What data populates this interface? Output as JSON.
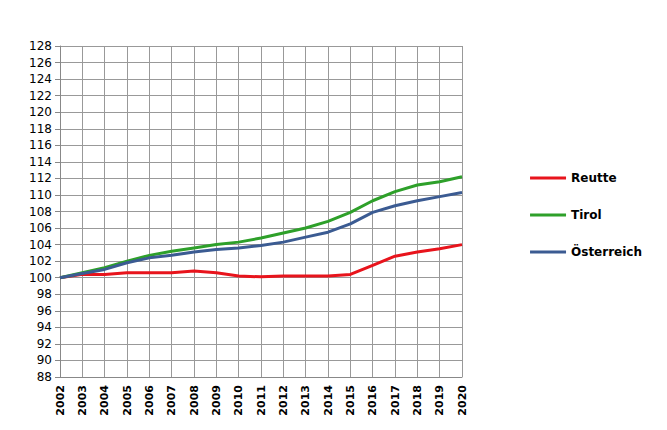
{
  "chart_data": {
    "type": "line",
    "categories": [
      "2002",
      "2003",
      "2004",
      "2005",
      "2006",
      "2007",
      "2008",
      "2009",
      "2010",
      "2011",
      "2012",
      "2013",
      "2014",
      "2015",
      "2016",
      "2017",
      "2018",
      "2019",
      "2020"
    ],
    "series": [
      {
        "name": "Reutte",
        "color": "#e8141c",
        "values": [
          100,
          100.4,
          100.4,
          100.6,
          100.6,
          100.6,
          100.8,
          100.6,
          100.2,
          100.1,
          100.2,
          100.2,
          100.2,
          100.4,
          101.5,
          102.6,
          103.1,
          103.5,
          104.0
        ]
      },
      {
        "name": "Tirol",
        "color": "#2ea02a",
        "values": [
          100,
          100.6,
          101.2,
          102.0,
          102.7,
          103.2,
          103.6,
          104.0,
          104.3,
          104.8,
          105.4,
          106.0,
          106.8,
          107.9,
          109.3,
          110.4,
          111.2,
          111.6,
          112.2
        ]
      },
      {
        "name": "Österreich",
        "color": "#3b5b92",
        "values": [
          100,
          100.5,
          101.0,
          101.8,
          102.4,
          102.7,
          103.1,
          103.4,
          103.6,
          103.9,
          104.3,
          104.9,
          105.5,
          106.5,
          107.9,
          108.7,
          109.3,
          109.8,
          110.3
        ]
      }
    ],
    "ylim": [
      88,
      128
    ],
    "yticks": [
      88,
      90,
      92,
      94,
      96,
      98,
      100,
      102,
      104,
      106,
      108,
      110,
      112,
      114,
      116,
      118,
      120,
      122,
      124,
      126,
      128
    ],
    "grid": true,
    "legend": "right"
  }
}
